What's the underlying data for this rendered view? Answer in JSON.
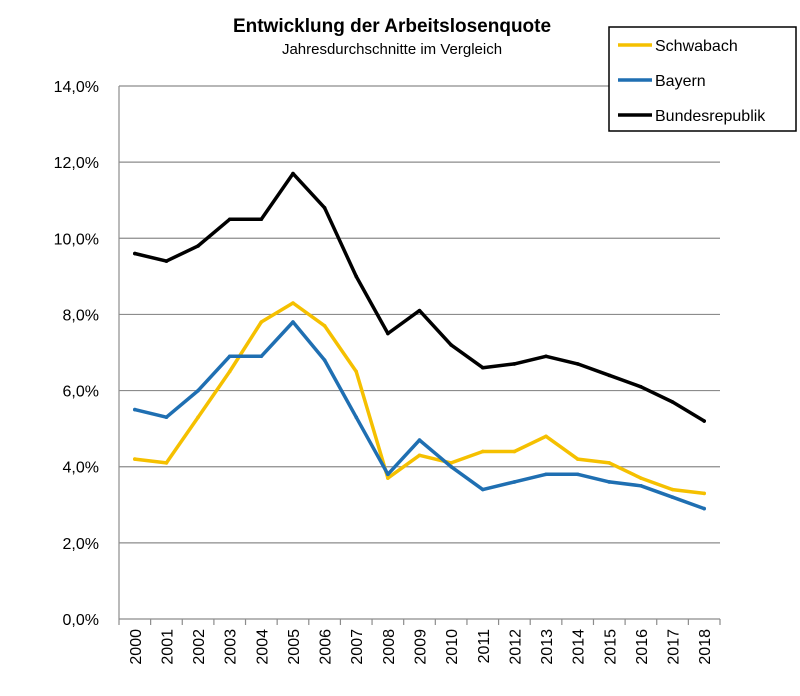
{
  "chart_data": {
    "type": "line",
    "title": "Entwicklung der Arbeitslosenquote",
    "subtitle": "Jahresdurchschnitte im Vergleich",
    "xlabel": "",
    "ylabel": "",
    "x": [
      "2000",
      "2001",
      "2002",
      "2003",
      "2004",
      "2005",
      "2006",
      "2007",
      "2008",
      "2009",
      "2010",
      "2011",
      "2012",
      "2013",
      "2014",
      "2015",
      "2016",
      "2017",
      "2018"
    ],
    "ylim": [
      0,
      14
    ],
    "yticks": [
      0,
      2,
      4,
      6,
      8,
      10,
      12,
      14
    ],
    "ytick_labels": [
      "0,0%",
      "2,0%",
      "4,0%",
      "6,0%",
      "8,0%",
      "10,0%",
      "12,0%",
      "14,0%"
    ],
    "grid": true,
    "legend_position": "top-right",
    "series": [
      {
        "name": "Schwabach",
        "color": "#F5C000",
        "values": [
          4.2,
          4.1,
          5.3,
          6.5,
          7.8,
          8.3,
          7.7,
          6.5,
          3.7,
          4.3,
          4.1,
          4.4,
          4.4,
          4.8,
          4.2,
          4.1,
          3.7,
          3.4,
          3.3
        ]
      },
      {
        "name": "Bayern",
        "color": "#1F6FB2",
        "values": [
          5.5,
          5.3,
          6.0,
          6.9,
          6.9,
          7.8,
          6.8,
          5.3,
          3.8,
          4.7,
          4.0,
          3.4,
          3.6,
          3.8,
          3.8,
          3.6,
          3.5,
          3.2,
          2.9
        ]
      },
      {
        "name": "Bundesrepublik",
        "color": "#000000",
        "values": [
          9.6,
          9.4,
          9.8,
          10.5,
          10.5,
          11.7,
          10.8,
          9.0,
          7.5,
          8.1,
          7.2,
          6.6,
          6.7,
          6.9,
          6.7,
          6.4,
          6.1,
          5.7,
          5.2
        ]
      }
    ]
  }
}
